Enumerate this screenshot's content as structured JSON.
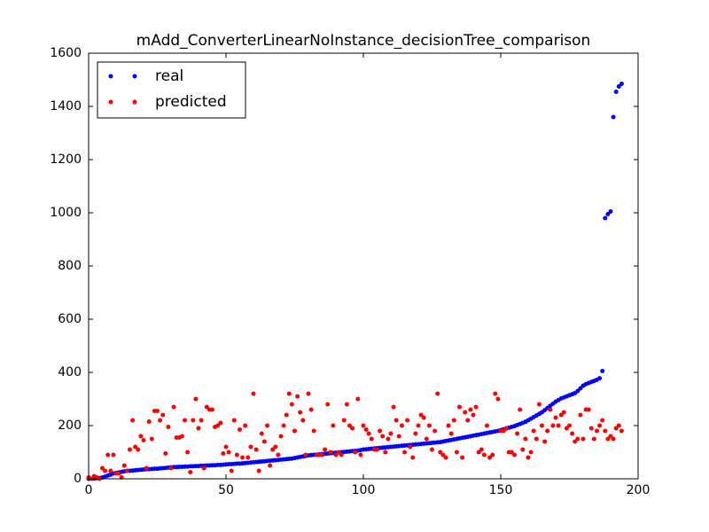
{
  "chart_data": {
    "type": "scatter",
    "title": "mAdd_ConverterLinearNoInstance_decisionTree_comparison",
    "x": [
      0,
      1,
      2,
      3,
      4,
      5,
      6,
      7,
      8,
      9,
      10,
      11,
      12,
      13,
      14,
      15,
      16,
      17,
      18,
      19,
      20,
      21,
      22,
      23,
      24,
      25,
      26,
      27,
      28,
      29,
      30,
      31,
      32,
      33,
      34,
      35,
      36,
      37,
      38,
      39,
      40,
      41,
      42,
      43,
      44,
      45,
      46,
      47,
      48,
      49,
      50,
      51,
      52,
      53,
      54,
      55,
      56,
      57,
      58,
      59,
      60,
      61,
      62,
      63,
      64,
      65,
      66,
      67,
      68,
      69,
      70,
      71,
      72,
      73,
      74,
      75,
      76,
      77,
      78,
      79,
      80,
      81,
      82,
      83,
      84,
      85,
      86,
      87,
      88,
      89,
      90,
      91,
      92,
      93,
      94,
      95,
      96,
      97,
      98,
      99,
      100,
      101,
      102,
      103,
      104,
      105,
      106,
      107,
      108,
      109,
      110,
      111,
      112,
      113,
      114,
      115,
      116,
      117,
      118,
      119,
      120,
      121,
      122,
      123,
      124,
      125,
      126,
      127,
      128,
      129,
      130,
      131,
      132,
      133,
      134,
      135,
      136,
      137,
      138,
      139,
      140,
      141,
      142,
      143,
      144,
      145,
      146,
      147,
      148,
      149,
      150,
      151,
      152,
      153,
      154,
      155,
      156,
      157,
      158,
      159,
      160,
      161,
      162,
      163,
      164,
      165,
      166,
      167,
      168,
      169,
      170,
      171,
      172,
      173,
      174,
      175,
      176,
      177,
      178,
      179,
      180,
      181,
      182,
      183,
      184,
      185,
      186,
      187,
      188,
      189,
      190,
      191,
      192,
      193,
      194
    ],
    "series": [
      {
        "name": "real",
        "color": "#0000ff",
        "values": [
          0,
          0,
          1,
          2,
          3,
          5,
          8,
          12,
          16,
          20,
          22,
          24,
          26,
          28,
          30,
          30,
          31,
          32,
          33,
          34,
          35,
          36,
          36,
          37,
          38,
          38,
          39,
          40,
          41,
          42,
          43,
          44,
          44,
          45,
          45,
          46,
          46,
          47,
          47,
          48,
          48,
          49,
          49,
          50,
          50,
          51,
          51,
          52,
          52,
          53,
          54,
          55,
          55,
          56,
          57,
          57,
          58,
          59,
          60,
          61,
          62,
          63,
          64,
          65,
          66,
          67,
          68,
          69,
          70,
          71,
          72,
          73,
          74,
          75,
          76,
          78,
          80,
          82,
          84,
          86,
          88,
          89,
          90,
          91,
          92,
          93,
          94,
          95,
          96,
          97,
          98,
          99,
          100,
          101,
          102,
          103,
          104,
          105,
          106,
          108,
          110,
          111,
          112,
          113,
          114,
          115,
          116,
          117,
          118,
          119,
          120,
          121,
          122,
          123,
          124,
          125,
          126,
          127,
          128,
          129,
          130,
          131,
          132,
          133,
          134,
          135,
          136,
          137,
          138,
          140,
          142,
          144,
          146,
          148,
          150,
          152,
          154,
          156,
          158,
          160,
          162,
          164,
          166,
          168,
          170,
          172,
          174,
          176,
          178,
          180,
          183,
          186,
          189,
          192,
          195,
          198,
          202,
          206,
          210,
          214,
          220,
          226,
          232,
          238,
          244,
          250,
          258,
          266,
          274,
          282,
          290,
          296,
          302,
          306,
          310,
          314,
          318,
          322,
          330,
          340,
          350,
          356,
          360,
          364,
          368,
          372,
          378,
          405,
          980,
          995,
          1005,
          1360,
          1455,
          1475,
          1485
        ]
      },
      {
        "name": "predicted",
        "color": "#ff0000",
        "values": [
          5,
          0,
          10,
          5,
          0,
          40,
          30,
          90,
          30,
          90,
          20,
          20,
          5,
          50,
          30,
          110,
          220,
          120,
          110,
          160,
          145,
          40,
          215,
          150,
          255,
          255,
          220,
          240,
          95,
          195,
          40,
          270,
          155,
          155,
          160,
          220,
          100,
          25,
          220,
          300,
          190,
          220,
          40,
          270,
          260,
          260,
          195,
          200,
          210,
          95,
          120,
          100,
          30,
          220,
          90,
          185,
          80,
          200,
          80,
          120,
          320,
          110,
          30,
          170,
          140,
          200,
          50,
          110,
          120,
          90,
          160,
          200,
          240,
          320,
          280,
          180,
          310,
          250,
          220,
          90,
          320,
          260,
          180,
          90,
          90,
          90,
          110,
          280,
          100,
          200,
          90,
          100,
          90,
          220,
          280,
          200,
          190,
          100,
          300,
          90,
          200,
          185,
          170,
          150,
          110,
          110,
          180,
          160,
          100,
          150,
          170,
          270,
          220,
          160,
          200,
          100,
          220,
          120,
          80,
          170,
          200,
          240,
          230,
          150,
          200,
          110,
          180,
          320,
          100,
          90,
          80,
          200,
          170,
          220,
          100,
          270,
          80,
          250,
          220,
          260,
          240,
          270,
          100,
          110,
          90,
          200,
          80,
          90,
          320,
          300,
          180,
          180,
          190,
          100,
          100,
          90,
          170,
          260,
          110,
          150,
          80,
          100,
          180,
          150,
          280,
          200,
          140,
          180,
          260,
          200,
          230,
          200,
          240,
          250,
          190,
          200,
          170,
          140,
          150,
          240,
          150,
          260,
          260,
          190,
          150,
          180,
          200,
          220,
          180,
          150,
          160,
          150,
          190,
          200,
          180
        ]
      }
    ],
    "xlim": [
      0,
      200
    ],
    "xticks": [
      0,
      50,
      100,
      150,
      200
    ],
    "ylim": [
      0,
      1600
    ],
    "yticks": [
      0,
      200,
      400,
      600,
      800,
      1000,
      1200,
      1400,
      1600
    ],
    "grid": false,
    "legend": "upper left"
  }
}
